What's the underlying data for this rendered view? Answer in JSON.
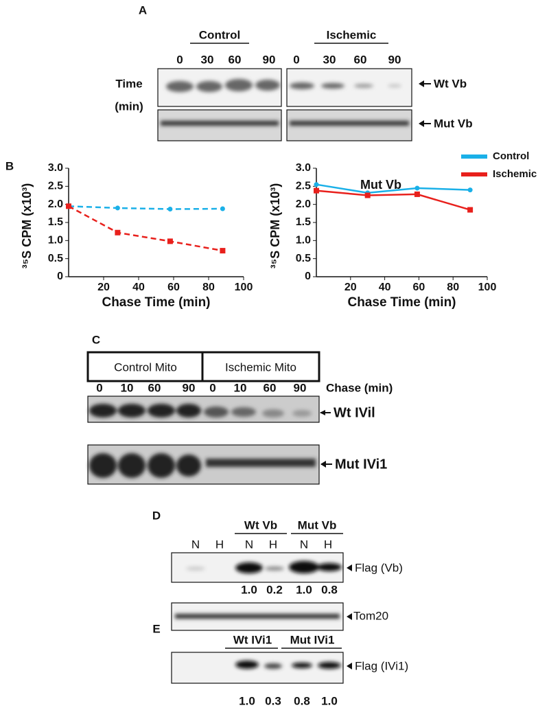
{
  "panel_a": {
    "label": "A",
    "groups": [
      "Control",
      "Ischemic"
    ],
    "times": [
      "0",
      "30",
      "60",
      "90"
    ],
    "row_title": [
      "Time",
      "(min)"
    ],
    "bands": [
      "Wt Vb",
      "Mut Vb"
    ]
  },
  "panel_b": {
    "label": "B"
  },
  "chart_data": [
    {
      "type": "line",
      "xlabel": "Chase Time (min)",
      "ylabel": "³⁵S CPM (x10³)",
      "x": [
        0,
        28,
        58,
        88
      ],
      "xlim": [
        0,
        100
      ],
      "xticks": [
        20,
        40,
        60,
        80,
        100
      ],
      "ylim": [
        0,
        3
      ],
      "yticks": [
        0,
        0.5,
        {
          "value": 1,
          "label": "1.0"
        },
        1.5,
        {
          "value": 2,
          "label": "2.0"
        },
        2.5,
        {
          "value": 3,
          "label": "3.0"
        }
      ],
      "line_style": "dashed",
      "series": [
        {
          "color": "#1ab0e8",
          "values": [
            1.95,
            1.9,
            1.87,
            1.88
          ]
        },
        {
          "color": "#e8201c",
          "values": [
            1.95,
            1.22,
            0.98,
            0.72
          ]
        }
      ]
    },
    {
      "type": "line",
      "title": "Mut Vb",
      "xlabel": "Chase Time (min)",
      "ylabel": "³⁵S CPM (x10³)",
      "x": [
        0,
        30,
        59,
        90
      ],
      "xlim": [
        0,
        100
      ],
      "xticks": [
        20,
        40,
        60,
        80,
        100
      ],
      "ylim": [
        0,
        3
      ],
      "yticks": [
        0,
        0.5,
        {
          "value": 1,
          "label": "1.0"
        },
        1.5,
        {
          "value": 2,
          "label": "2.0"
        },
        2.5,
        {
          "value": 3,
          "label": "3.0"
        }
      ],
      "line_style": "solid",
      "legend": "top-right",
      "series": [
        {
          "name": "Control",
          "color": "#1ab0e8",
          "values": [
            2.55,
            2.32,
            2.45,
            2.4
          ]
        },
        {
          "name": "Ischemic",
          "color": "#e8201c",
          "values": [
            2.38,
            2.25,
            2.28,
            1.85
          ]
        }
      ]
    }
  ],
  "panel_c": {
    "label": "C",
    "groups": [
      "Control Mito",
      "Ischemic Mito"
    ],
    "times": [
      "0",
      "10",
      "60",
      "90",
      "0",
      "10",
      "60",
      "90"
    ],
    "time_title": "Chase (min)",
    "bands": [
      "Wt IVil",
      "Mut IVi1"
    ]
  },
  "panel_d": {
    "label": "D",
    "groups": [
      "Wt Vb",
      "Mut Vb"
    ],
    "lanes": [
      "N",
      "H",
      "N",
      "H",
      "N",
      "H"
    ],
    "bands": [
      "Flag (Vb)",
      "Tom20"
    ],
    "quant": [
      "1.0",
      "0.2",
      "1.0",
      "0.8"
    ]
  },
  "panel_e": {
    "label": "E",
    "groups": [
      "Wt IVi1",
      "Mut IVi1"
    ],
    "bands": [
      "Flag (IVi1)"
    ],
    "quant": [
      "1.0",
      "0.3",
      "0.8",
      "1.0"
    ]
  }
}
